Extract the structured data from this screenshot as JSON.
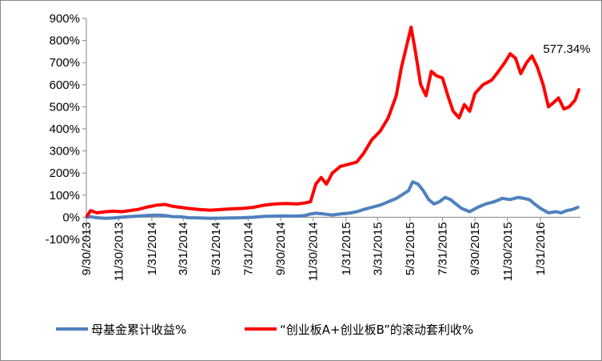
{
  "chart_data": {
    "type": "line",
    "title": "",
    "xlabel": "",
    "ylabel": "",
    "ylim": [
      -100,
      900
    ],
    "y_ticks": [
      "-100%",
      "0%",
      "100%",
      "200%",
      "300%",
      "400%",
      "500%",
      "600%",
      "700%",
      "800%",
      "900%"
    ],
    "y_tick_values": [
      -100,
      0,
      100,
      200,
      300,
      400,
      500,
      600,
      700,
      800,
      900
    ],
    "x_ticks": [
      "9/30/2013",
      "11/30/2013",
      "1/31/2014",
      "3/31/2014",
      "5/31/2014",
      "7/31/2014",
      "9/30/2014",
      "11/30/2014",
      "1/31/2015",
      "3/31/2015",
      "5/31/2015",
      "7/31/2015",
      "9/30/2015",
      "11/30/2015",
      "1/31/2016"
    ],
    "x_tick_values": [
      "2013-09-30",
      "2013-11-30",
      "2014-01-31",
      "2014-03-31",
      "2014-05-31",
      "2014-07-31",
      "2014-09-30",
      "2014-11-30",
      "2015-01-31",
      "2015-03-31",
      "2015-05-31",
      "2015-07-31",
      "2015-09-30",
      "2015-11-30",
      "2016-01-31"
    ],
    "xlim": [
      "2013-09-30",
      "2016-04-15"
    ],
    "grid": false,
    "legend_position": "bottom",
    "series": [
      {
        "name": "母基金累计收益%",
        "color": "#4F81BD",
        "x": [
          "2013-10-01",
          "2013-10-08",
          "2013-10-20",
          "2013-11-05",
          "2013-11-20",
          "2013-12-05",
          "2013-12-20",
          "2014-01-05",
          "2014-01-20",
          "2014-02-10",
          "2014-02-25",
          "2014-03-10",
          "2014-03-25",
          "2014-04-10",
          "2014-04-30",
          "2014-05-20",
          "2014-06-10",
          "2014-06-30",
          "2014-07-20",
          "2014-08-10",
          "2014-08-31",
          "2014-09-20",
          "2014-10-10",
          "2014-10-31",
          "2014-11-15",
          "2014-11-25",
          "2014-12-05",
          "2014-12-20",
          "2015-01-05",
          "2015-01-20",
          "2015-02-05",
          "2015-02-20",
          "2015-03-05",
          "2015-03-20",
          "2015-04-05",
          "2015-04-20",
          "2015-05-05",
          "2015-05-15",
          "2015-05-28",
          "2015-06-05",
          "2015-06-15",
          "2015-06-25",
          "2015-07-05",
          "2015-07-15",
          "2015-07-25",
          "2015-08-05",
          "2015-08-15",
          "2015-08-25",
          "2015-09-05",
          "2015-09-20",
          "2015-10-05",
          "2015-10-20",
          "2015-11-05",
          "2015-11-20",
          "2015-12-05",
          "2015-12-20",
          "2015-12-31",
          "2016-01-10",
          "2016-01-20",
          "2016-01-31",
          "2016-02-15",
          "2016-02-29",
          "2016-03-10",
          "2016-03-20",
          "2016-03-31",
          "2016-04-10"
        ],
        "values": [
          0,
          2,
          -2,
          -5,
          -3,
          0,
          3,
          5,
          8,
          10,
          8,
          3,
          2,
          -2,
          -3,
          -5,
          -4,
          -3,
          -2,
          0,
          4,
          5,
          6,
          5,
          8,
          15,
          18,
          15,
          10,
          15,
          18,
          25,
          35,
          45,
          55,
          70,
          85,
          100,
          120,
          160,
          150,
          120,
          80,
          60,
          70,
          90,
          80,
          60,
          40,
          25,
          45,
          60,
          70,
          85,
          80,
          90,
          85,
          80,
          60,
          40,
          20,
          25,
          20,
          30,
          35,
          45
        ]
      },
      {
        "name": "“创业板A+创业板B”的滚动套利收%",
        "color": "#FF0000",
        "x": [
          "2013-10-01",
          "2013-10-08",
          "2013-10-20",
          "2013-11-05",
          "2013-11-20",
          "2013-12-05",
          "2013-12-20",
          "2014-01-05",
          "2014-01-20",
          "2014-02-10",
          "2014-02-25",
          "2014-03-10",
          "2014-03-25",
          "2014-04-10",
          "2014-04-30",
          "2014-05-20",
          "2014-06-10",
          "2014-06-30",
          "2014-07-20",
          "2014-08-10",
          "2014-08-31",
          "2014-09-20",
          "2014-10-10",
          "2014-10-31",
          "2014-11-15",
          "2014-11-25",
          "2014-12-05",
          "2014-12-15",
          "2014-12-25",
          "2015-01-05",
          "2015-01-20",
          "2015-02-05",
          "2015-02-20",
          "2015-03-05",
          "2015-03-20",
          "2015-04-05",
          "2015-04-20",
          "2015-05-05",
          "2015-05-15",
          "2015-05-25",
          "2015-06-02",
          "2015-06-10",
          "2015-06-20",
          "2015-06-30",
          "2015-07-10",
          "2015-07-20",
          "2015-07-31",
          "2015-08-10",
          "2015-08-20",
          "2015-08-31",
          "2015-09-10",
          "2015-09-20",
          "2015-09-30",
          "2015-10-15",
          "2015-10-31",
          "2015-11-10",
          "2015-11-25",
          "2015-12-05",
          "2015-12-15",
          "2015-12-25",
          "2016-01-05",
          "2016-01-15",
          "2016-01-25",
          "2016-02-05",
          "2016-02-15",
          "2016-02-25",
          "2016-03-05",
          "2016-03-15",
          "2016-03-25",
          "2016-04-05",
          "2016-04-12"
        ],
        "values": [
          5,
          30,
          20,
          25,
          28,
          25,
          30,
          35,
          45,
          55,
          58,
          50,
          45,
          40,
          35,
          32,
          35,
          38,
          40,
          45,
          55,
          60,
          62,
          60,
          65,
          70,
          150,
          180,
          150,
          200,
          230,
          240,
          250,
          290,
          350,
          390,
          450,
          550,
          680,
          780,
          860,
          750,
          600,
          550,
          660,
          640,
          630,
          550,
          480,
          450,
          510,
          480,
          560,
          600,
          620,
          650,
          700,
          740,
          720,
          650,
          700,
          730,
          680,
          600,
          500,
          520,
          540,
          490,
          500,
          530,
          577.34
        ]
      }
    ],
    "annotations": [
      {
        "text": "577.34%",
        "x": "2016-04-05",
        "y": 577.34
      }
    ]
  }
}
